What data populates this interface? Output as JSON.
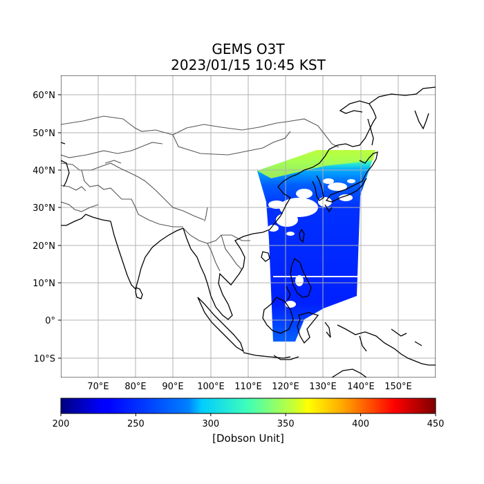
{
  "title": {
    "product": "GEMS O3T",
    "datetime": "2023/01/15 10:45 KST"
  },
  "map": {
    "lon_range": [
      60,
      160
    ],
    "lat_range": [
      -15,
      65
    ],
    "lon_ticks": [
      "70°E",
      "80°E",
      "90°E",
      "100°E",
      "110°E",
      "120°E",
      "130°E",
      "140°E",
      "150°E"
    ],
    "lat_ticks": [
      "60°N",
      "50°N",
      "40°N",
      "30°N",
      "20°N",
      "10°N",
      "0°",
      "10°S"
    ],
    "grid": true,
    "coastline_color": "#000000",
    "border_color": "#555555",
    "gridline_color": "#b0b0b0"
  },
  "colorbar": {
    "colormap": "jet",
    "vmin": 200,
    "vmax": 450,
    "ticks": [
      "200",
      "250",
      "300",
      "350",
      "400",
      "450"
    ],
    "label": "[Dobson Unit]"
  },
  "swath": {
    "dominant_value_dobson": 245,
    "north_edge_value_dobson": 340
  }
}
